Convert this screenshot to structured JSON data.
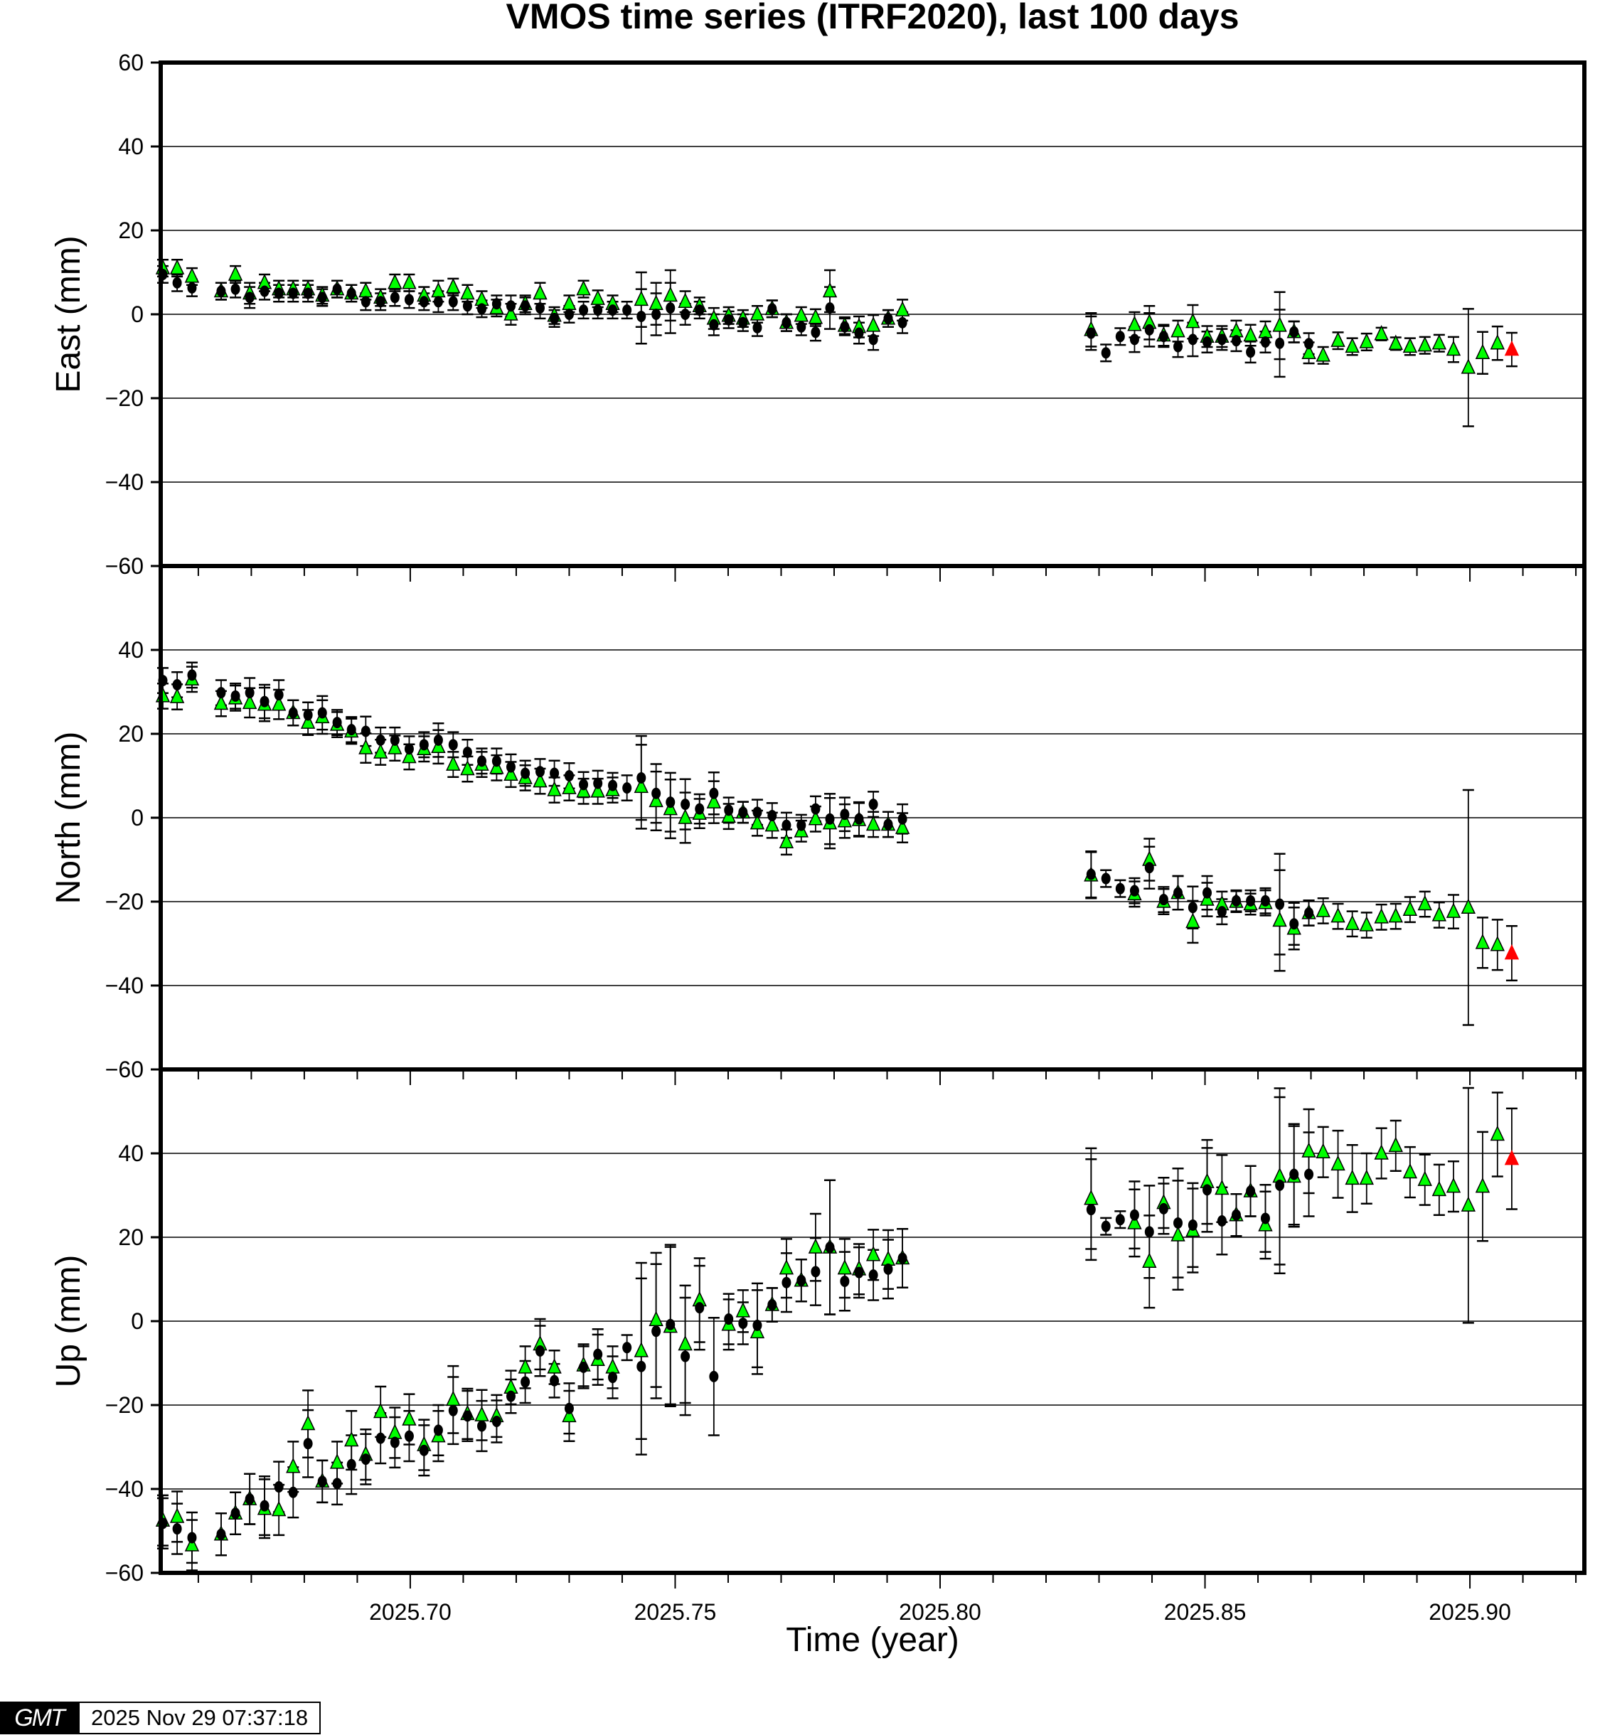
{
  "chart_data": {
    "type": "scatter",
    "title": "VMOS time series (ITRF2020), last 100 days",
    "xlabel": "Time (year)",
    "xlim": [
      2025.6529,
      2025.9216
    ],
    "xticks": [
      "2025.70",
      "2025.75",
      "2025.80",
      "2025.85",
      "2025.90"
    ],
    "xtick_values": [
      2025.7,
      2025.75,
      2025.8,
      2025.85,
      2025.9
    ],
    "xminor_step": 0.01,
    "grid": true,
    "colors": {
      "circle": "#000000",
      "triangle": "#00ff00",
      "latest": "#ff0000"
    },
    "time": [
      2025.6533,
      2025.656,
      2025.6588,
      2025.6643,
      2025.667,
      2025.6697,
      2025.6725,
      2025.6752,
      2025.6779,
      2025.6807,
      2025.6834,
      2025.6862,
      2025.6889,
      2025.6916,
      2025.6944,
      2025.6971,
      2025.6998,
      2025.7026,
      2025.7053,
      2025.7081,
      2025.7108,
      2025.7135,
      2025.7163,
      2025.719,
      2025.7217,
      2025.7245,
      2025.7272,
      2025.73,
      2025.7327,
      2025.7354,
      2025.7382,
      2025.7409,
      2025.7436,
      2025.7464,
      2025.7491,
      2025.7519,
      2025.7546,
      2025.7573,
      2025.7601,
      2025.7628,
      2025.7655,
      2025.7683,
      2025.771,
      2025.7738,
      2025.7765,
      2025.7792,
      2025.782,
      2025.7847,
      2025.7874,
      2025.7902,
      2025.7929,
      2025.8285,
      2025.8313,
      2025.834,
      2025.8367,
      2025.8395,
      2025.8422,
      2025.8449,
      2025.8477,
      2025.8504,
      2025.8532,
      2025.8559,
      2025.8586,
      2025.8614,
      2025.8641,
      2025.8668,
      2025.8696,
      2025.8723,
      2025.8751,
      2025.8778,
      2025.8805,
      2025.8833,
      2025.886,
      2025.8887,
      2025.8915,
      2025.8942,
      2025.8969,
      2025.8997,
      2025.9024,
      2025.9052,
      2025.9079
    ],
    "panels": [
      {
        "name": "east",
        "ylabel": "East (mm)",
        "ylim": [
          -60,
          60
        ],
        "yticks": [
          60,
          40,
          20,
          0,
          -20,
          -40,
          -60
        ],
        "circle": [
          9.5,
          7.5,
          6.3,
          5.5,
          6,
          4,
          5.5,
          5,
          5,
          5,
          4,
          6,
          5,
          3,
          3,
          4,
          3.5,
          3,
          3,
          3,
          2,
          1.3,
          2.5,
          2,
          2,
          1.5,
          -1,
          0,
          1,
          1,
          1,
          1,
          -0.5,
          0,
          1.5,
          0,
          1,
          -2.5,
          -1.3,
          -2,
          -3.2,
          1.3,
          -2,
          -3,
          -4.3,
          1.5,
          -3,
          -4.5,
          -6,
          -1,
          -2,
          -4.5,
          -9.2,
          -5.3,
          -6,
          -3.7,
          -5.3,
          -7.7,
          -6,
          -6.6,
          -6,
          -6.3,
          -9,
          -6.6,
          -6.9,
          -4.2,
          -7,
          null,
          null,
          null,
          null,
          null,
          null,
          null,
          null,
          null,
          null,
          null,
          null,
          null,
          null
        ],
        "triangle": [
          11,
          11,
          9,
          5.5,
          9.5,
          5,
          7.5,
          6,
          6,
          6,
          4.5,
          6,
          5,
          5.5,
          4,
          7.5,
          7.5,
          4.5,
          5.5,
          6.5,
          5,
          3.5,
          1.5,
          0,
          2.5,
          5,
          -0.3,
          2.5,
          6,
          3.7,
          2.5,
          null,
          3.5,
          2.5,
          4.5,
          3,
          2,
          -1,
          -0.3,
          -1,
          0,
          1.3,
          -2,
          -0.3,
          -0.8,
          5.5,
          -2.7,
          -3,
          -2.7,
          -1,
          1,
          -3.7,
          null,
          null,
          -2.5,
          -2,
          -5,
          -4,
          -1.8,
          -5.3,
          -5.3,
          -4,
          -5,
          -4.2,
          -2.7,
          -4.2,
          -9.2,
          -9.8,
          -6.3,
          -7.7,
          -6.6,
          -4.7,
          -7,
          -7.7,
          -7.4,
          -6.9,
          -8.4,
          -12.7,
          -9.2,
          -6.9,
          null
        ],
        "err": [
          2,
          2,
          2,
          2,
          2,
          2.5,
          2,
          2,
          2,
          2,
          2,
          2,
          2,
          2,
          2,
          2,
          2,
          2,
          2.5,
          2,
          2,
          2,
          2,
          2.5,
          2,
          2.5,
          2,
          2,
          2,
          2,
          2,
          2,
          6.5,
          5,
          6,
          2.5,
          2,
          2.5,
          2,
          2,
          2,
          2,
          2,
          2,
          2,
          5,
          2,
          2.5,
          2.5,
          2,
          2.5,
          4,
          2,
          2,
          3,
          4,
          2.5,
          2.5,
          4,
          2.5,
          2.5,
          2.5,
          2.5,
          2.5,
          8,
          2.5,
          2.5,
          2,
          2,
          2,
          2,
          1.5,
          1.5,
          2,
          2,
          2,
          3,
          14,
          5,
          4,
          4
        ],
        "latest": {
          "time": 2025.9079,
          "value": -8.4,
          "err": 4
        }
      },
      {
        "name": "north",
        "ylabel": "North (mm)",
        "ylim": [
          -60,
          60
        ],
        "yticks": [
          40,
          20,
          0,
          -20,
          -40,
          -60
        ],
        "circle": [
          32.7,
          31.7,
          34,
          29.8,
          29,
          29.8,
          27.7,
          29.3,
          25,
          24.5,
          25,
          22.7,
          21,
          20.6,
          18.5,
          18.5,
          16.4,
          17.4,
          18.5,
          17.4,
          15.6,
          13.5,
          13.5,
          12.1,
          10.6,
          11,
          10.6,
          10,
          7.9,
          8.2,
          7.7,
          7.1,
          9.5,
          5.8,
          3.7,
          3.2,
          2.1,
          5.8,
          1.8,
          1.3,
          1.3,
          0.5,
          -1.8,
          -1.8,
          2.1,
          -0.3,
          0.8,
          -0.3,
          3.2,
          -1.6,
          -0.3,
          -13.5,
          -14.5,
          -16.9,
          -17.4,
          -11.9,
          -19.5,
          -17.9,
          -21.4,
          -17.9,
          -22.4,
          -19.8,
          -19.8,
          -19.8,
          -20.6,
          -25.3,
          -22.7,
          null,
          null,
          null,
          null,
          null,
          null,
          null,
          null,
          null,
          null,
          null,
          null,
          null,
          null
        ],
        "triangle": [
          29,
          28.8,
          33,
          27.2,
          28.5,
          27.4,
          27,
          27,
          25,
          22.7,
          24,
          22.2,
          20.6,
          16.6,
          15.6,
          16.6,
          14.5,
          16.4,
          16.9,
          12.7,
          11.6,
          12.7,
          11.9,
          10.3,
          9.5,
          8.7,
          6.6,
          7.1,
          6.3,
          6.3,
          6.6,
          null,
          7.4,
          4,
          2.1,
          0,
          1,
          3.7,
          0.3,
          1.3,
          -1.3,
          -1.8,
          -5.8,
          -3.2,
          -0.3,
          -1.3,
          -0.8,
          -0.5,
          -1.6,
          -1.6,
          -2.4,
          -13.7,
          null,
          null,
          -18.2,
          -10,
          -20,
          -17.9,
          -24.8,
          -19.5,
          -20.6,
          -20,
          -20.6,
          -20.3,
          -24.5,
          -26.4,
          -22.7,
          -22.2,
          -23.5,
          -25.3,
          -25.6,
          -23.7,
          -23.5,
          -21.9,
          -20.6,
          -23.2,
          -22.4,
          -21.4,
          -29.8,
          -30.3,
          null
        ],
        "err": [
          3,
          3,
          3,
          3,
          3,
          3.5,
          4,
          3.5,
          3,
          3,
          4,
          3,
          3,
          3.5,
          3,
          3,
          3,
          3,
          4,
          3,
          3,
          3,
          3,
          3,
          3,
          3,
          3,
          3,
          3,
          3,
          3,
          3,
          10,
          7,
          7,
          6,
          3.5,
          5,
          3,
          2.5,
          3,
          3,
          3,
          2.5,
          3,
          6,
          4,
          4,
          3,
          3,
          3.5,
          5.5,
          2,
          2,
          3,
          5,
          3,
          4,
          5,
          4,
          3,
          2.5,
          2.5,
          3,
          12,
          5,
          3,
          3,
          3,
          3,
          3,
          3,
          3,
          3,
          3,
          3,
          4,
          28,
          6,
          6,
          6.5
        ],
        "latest": {
          "time": 2025.9079,
          "value": -32.3,
          "err": 6.5
        }
      },
      {
        "name": "up",
        "ylabel": "Up (mm)",
        "ylim": [
          -60,
          60
        ],
        "yticks": [
          40,
          20,
          0,
          -20,
          -40,
          -60
        ],
        "circle": [
          -48.2,
          -49.5,
          -51.6,
          -50.8,
          -45.8,
          -42.4,
          -44,
          -39.5,
          -40.8,
          -29.2,
          -38.2,
          -38.7,
          -34.2,
          -32.9,
          -27.9,
          -28.9,
          -27.4,
          -30.8,
          -26,
          -21.3,
          -22.6,
          -25,
          -23.9,
          -17.9,
          -14.5,
          -7.1,
          -14.2,
          -20.8,
          -11,
          -7.9,
          -13.4,
          -6.3,
          -10.8,
          -2.4,
          -0.8,
          -8.4,
          3.2,
          -13.2,
          0.5,
          -0.5,
          -1,
          3.9,
          9.2,
          9.7,
          11.8,
          17.6,
          9.5,
          11.6,
          11,
          12.4,
          15,
          26.6,
          22.6,
          24.2,
          25.3,
          21.3,
          26.8,
          23.4,
          22.9,
          31.3,
          23.9,
          25.3,
          31,
          24.5,
          32.4,
          35,
          35,
          null,
          null,
          null,
          null,
          null,
          null,
          null,
          null,
          null,
          null,
          null,
          null,
          null,
          null
        ],
        "triangle": [
          -47.5,
          -46.6,
          -53.4,
          -50.8,
          -45.8,
          -42.4,
          -44.7,
          -45,
          -34.7,
          -24.5,
          -38.2,
          -33.7,
          -28.4,
          -31.8,
          -21.6,
          -26.6,
          -23.4,
          -29.5,
          -27.4,
          -18.7,
          -22.1,
          -22.4,
          -22.6,
          -15.8,
          -11,
          -5.5,
          -11,
          -22.6,
          -10.5,
          -9.2,
          -11,
          null,
          -7.1,
          0.3,
          -1.3,
          -5.5,
          5,
          null,
          -0.8,
          2.4,
          -2.6,
          3.9,
          12.6,
          9.7,
          17.6,
          17.6,
          12.6,
          12.4,
          15.8,
          14.7,
          15,
          29.2,
          null,
          null,
          23.4,
          14.2,
          28.2,
          20.5,
          21.6,
          33.2,
          31.6,
          25.3,
          31,
          22.9,
          34.5,
          34.5,
          40.5,
          40.3,
          37.4,
          34,
          34,
          40,
          41.8,
          35.5,
          33.7,
          31.3,
          32.1,
          27.6,
          32.1,
          44.5,
          null
        ],
        "err": [
          6,
          6,
          6,
          5,
          5,
          6,
          7,
          6,
          6,
          8,
          5,
          5,
          7,
          6,
          6,
          6,
          6,
          6,
          6,
          8,
          6,
          6,
          5,
          4,
          5,
          6,
          4,
          6,
          5,
          6,
          5,
          3,
          21,
          16,
          19,
          14,
          10,
          14,
          6,
          5,
          10,
          4,
          7,
          5,
          8,
          16,
          7,
          6,
          6,
          7,
          7,
          12,
          2,
          2,
          8,
          11,
          6,
          13,
          10,
          10,
          8,
          5,
          6,
          8,
          21,
          12,
          10,
          6,
          8,
          8,
          6,
          6,
          6,
          6,
          6,
          6,
          6,
          28,
          13,
          10,
          12
        ],
        "latest": {
          "time": 2025.9079,
          "value": 38.7,
          "err": 12
        }
      }
    ]
  },
  "footer": {
    "logo": "GMT",
    "timestamp": "2025 Nov 29 07:37:18"
  }
}
